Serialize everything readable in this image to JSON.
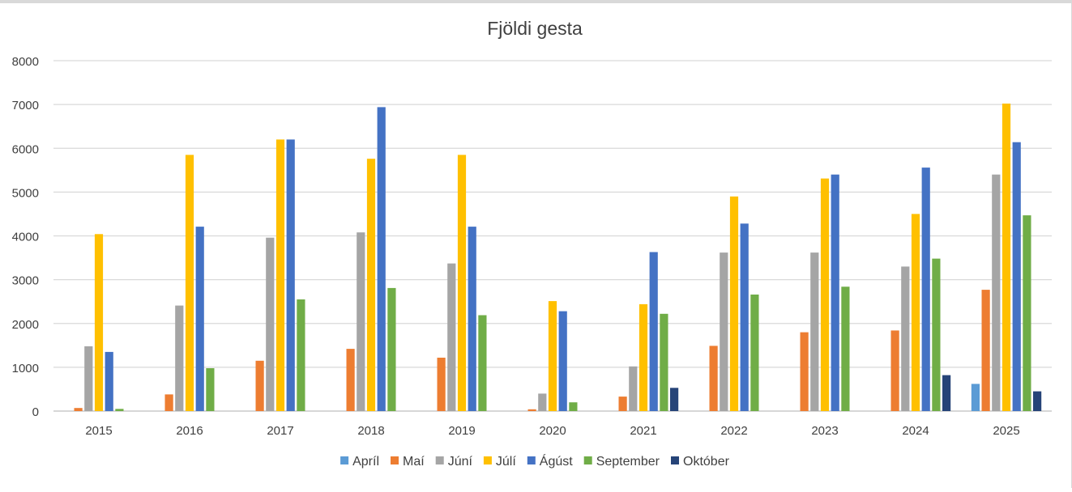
{
  "chart_data": {
    "type": "bar",
    "title": "Fjöldi gesta",
    "xlabel": "",
    "ylabel": "",
    "ylim": [
      0,
      8000
    ],
    "yticks": [
      0,
      1000,
      2000,
      3000,
      4000,
      5000,
      6000,
      7000,
      8000
    ],
    "grid": true,
    "legend_position": "bottom",
    "categories": [
      "2015",
      "2016",
      "2017",
      "2018",
      "2019",
      "2020",
      "2021",
      "2022",
      "2023",
      "2024",
      "2025"
    ],
    "series": [
      {
        "name": "Apríl",
        "color": "#5B9BD5",
        "values": [
          0,
          0,
          0,
          0,
          0,
          0,
          0,
          0,
          0,
          0,
          620
        ]
      },
      {
        "name": "Maí",
        "color": "#ED7D31",
        "values": [
          70,
          380,
          1150,
          1420,
          1220,
          40,
          330,
          1490,
          1800,
          1840,
          2770
        ]
      },
      {
        "name": "Júní",
        "color": "#A5A5A5",
        "values": [
          1480,
          2410,
          3960,
          4080,
          3370,
          400,
          1020,
          3620,
          3620,
          3300,
          5400
        ]
      },
      {
        "name": "Júlí",
        "color": "#FFC000",
        "values": [
          4040,
          5850,
          6200,
          5760,
          5850,
          2510,
          2440,
          4900,
          5310,
          4500,
          7020
        ]
      },
      {
        "name": "Ágúst",
        "color": "#4472C4",
        "values": [
          1350,
          4210,
          6200,
          6940,
          4210,
          2280,
          3630,
          4280,
          5400,
          5560,
          6140
        ]
      },
      {
        "name": "September",
        "color": "#70AD47",
        "values": [
          50,
          980,
          2550,
          2810,
          2190,
          200,
          2220,
          2660,
          2840,
          3480,
          4470
        ]
      },
      {
        "name": "Október",
        "color": "#264478",
        "values": [
          0,
          0,
          0,
          0,
          0,
          0,
          530,
          0,
          0,
          820,
          450
        ]
      }
    ]
  },
  "colors": {
    "grid": "#d9d9d9",
    "text": "#404040",
    "axis": "#bfbfbf"
  }
}
